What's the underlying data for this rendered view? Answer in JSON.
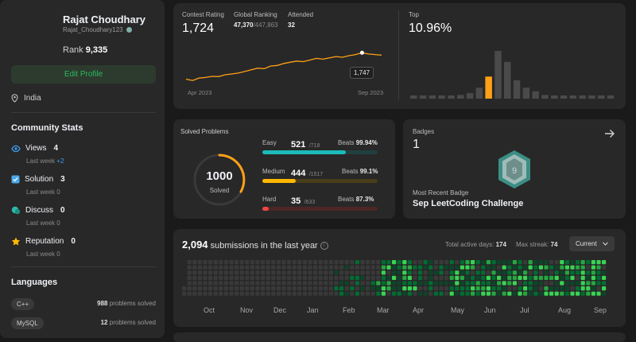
{
  "profile": {
    "name": "Rajat Choudhary",
    "handle": "Rajat_Choudhary123",
    "rank_label": "Rank",
    "rank_value": "9,335",
    "edit_button": "Edit Profile",
    "location": "India"
  },
  "community": {
    "title": "Community Stats",
    "stats": [
      {
        "label": "Views",
        "value": "4",
        "sub": "Last week",
        "delta": "+2",
        "icon": "eye-icon",
        "color": "#3d9cf0"
      },
      {
        "label": "Solution",
        "value": "3",
        "sub": "Last week",
        "delta": "0",
        "icon": "solution-check-icon",
        "color": "#4aa8e8"
      },
      {
        "label": "Discuss",
        "value": "0",
        "sub": "Last week",
        "delta": "0",
        "icon": "discuss-icon",
        "color": "#2cbba8"
      },
      {
        "label": "Reputation",
        "value": "0",
        "sub": "Last week",
        "delta": "0",
        "icon": "star-icon",
        "color": "#ffb800"
      }
    ]
  },
  "languages": {
    "title": "Languages",
    "items": [
      {
        "name": "C++",
        "count": "988",
        "suffix": "problems solved"
      },
      {
        "name": "MySQL",
        "count": "12",
        "suffix": "problems solved"
      }
    ]
  },
  "contest": {
    "rating_label": "Contest Rating",
    "rating_value": "1,724",
    "global_label": "Global Ranking",
    "global_value": "47,370",
    "global_total": "/447,863",
    "attended_label": "Attended",
    "attended_value": "32",
    "tooltip": "1,747",
    "x_start": "Apr 2023",
    "x_end": "Sep 2023",
    "top_label": "Top",
    "top_value": "10.96%"
  },
  "solved": {
    "title": "Solved Problems",
    "total": "1000",
    "total_label": "Solved",
    "beats_label": "Beats",
    "rows": [
      {
        "name": "Easy",
        "count": "521",
        "total": "/718",
        "beats": "99.94%",
        "color": "#1cbaba",
        "track": "#20403f",
        "fraction": 0.7256
      },
      {
        "name": "Medium",
        "count": "444",
        "total": "/1517",
        "beats": "99.1%",
        "color": "#ffb800",
        "track": "#4a3d19",
        "fraction": 0.2927
      },
      {
        "name": "Hard",
        "count": "35",
        "total": "/633",
        "beats": "87.3%",
        "color": "#ef4743",
        "track": "#4d2626",
        "fraction": 0.0553
      }
    ]
  },
  "badges": {
    "label": "Badges",
    "count": "1",
    "recent_label": "Most Recent Badge",
    "recent_name": "Sep LeetCoding Challenge",
    "badge_digit": "9"
  },
  "submissions": {
    "count": "2,094",
    "text": "submissions in the last year",
    "active_label": "Total active days:",
    "active_value": "174",
    "streak_label": "Max streak:",
    "streak_value": "74",
    "dropdown": "Current",
    "months": [
      "Oct",
      "Nov",
      "Dec",
      "Jan",
      "Feb",
      "Mar",
      "Apr",
      "May",
      "Jun",
      "Jul",
      "Aug",
      "Sep"
    ]
  },
  "chart_data": {
    "type": "line",
    "x": [
      "Apr 2023",
      "",
      "",
      "",
      "",
      "",
      "",
      "",
      "",
      "",
      "",
      "",
      "",
      "",
      "",
      "",
      "",
      "",
      "",
      "",
      "",
      "",
      "",
      "",
      "",
      "",
      "",
      "",
      "",
      "",
      "Sep 2023"
    ],
    "series": [
      {
        "values": [
          1505,
          1492,
          1515,
          1520,
          1530,
          1528,
          1545,
          1552,
          1560,
          1575,
          1590,
          1605,
          1600,
          1625,
          1630,
          1648,
          1660,
          1670,
          1665,
          1680,
          1695,
          1688,
          1700,
          1712,
          1705,
          1720,
          1730,
          1747,
          1735,
          1730,
          1724
        ]
      }
    ],
    "ylim": [
      1450,
      1800
    ],
    "highlight": {
      "index": 27,
      "label": "1,747"
    },
    "histogram": {
      "values": [
        1,
        1,
        1,
        1,
        1,
        2,
        3,
        6,
        12,
        26,
        20,
        10,
        6,
        4,
        2,
        1,
        1,
        1,
        1,
        1,
        1,
        1
      ],
      "highlight_index": 8
    }
  }
}
